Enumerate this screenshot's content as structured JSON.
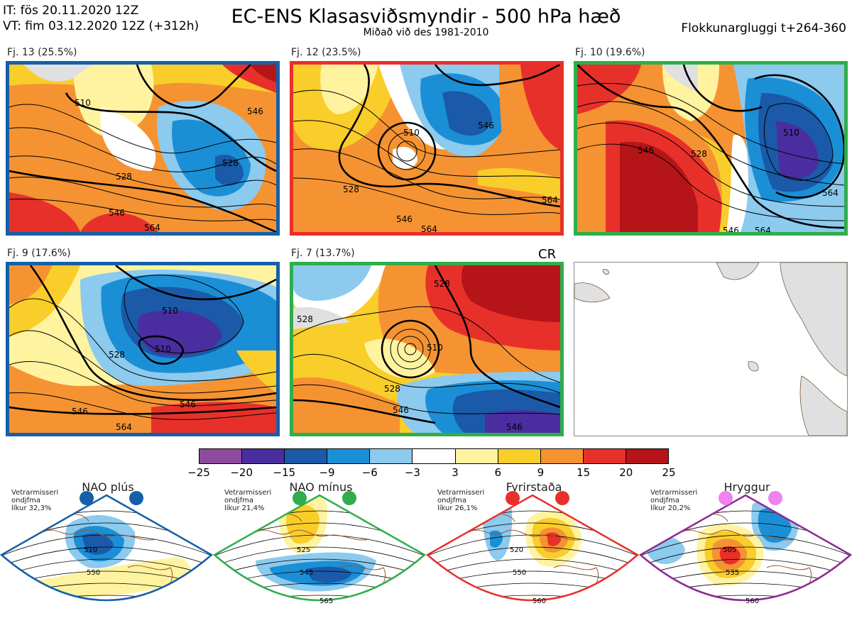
{
  "header": {
    "it_line": "IT: fös 20.11.2020 12Z",
    "vt_line": "VT: fim 03.12.2020 12Z  (+312h)",
    "title": "EC-ENS Klasasviðsmyndir - 500 hPa hæð",
    "subtitle": "Miðað við des 1981-2010",
    "window": "Flokkunargluggi t+264-360"
  },
  "clusters": [
    {
      "label": "Fj. 13 (25.5%)",
      "border": "#1560a8",
      "contours": [
        "510",
        "528",
        "528",
        "546",
        "546",
        "564"
      ]
    },
    {
      "label": "Fj. 12 (23.5%)",
      "border": "#e8302a",
      "contours": [
        "510",
        "528",
        "546",
        "546",
        "564",
        "564"
      ]
    },
    {
      "label": "Fj. 10 (19.6%)",
      "border": "#2fae4b",
      "contours": [
        "510",
        "528",
        "546",
        "546",
        "564",
        "564"
      ]
    },
    {
      "label": "Fj. 9 (17.6%)",
      "border": "#1560a8",
      "contours": [
        "510",
        "510",
        "528",
        "546",
        "546",
        "564"
      ]
    },
    {
      "label": "Fj. 7 (13.7%)",
      "border": "#2fae4b",
      "contours": [
        "510",
        "528",
        "546",
        "546",
        "528",
        "528"
      ]
    }
  ],
  "cr_label": "CR",
  "colorbar": {
    "ticks": [
      "−25",
      "−20",
      "−15",
      "−9",
      "−6",
      "−3",
      "3",
      "6",
      "9",
      "15",
      "20",
      "25"
    ],
    "colors": [
      "#8e4b9d",
      "#4a2ea0",
      "#1a5aa8",
      "#1b8fd6",
      "#8ccaee",
      "#ffffff",
      "#fff3a0",
      "#f9cd2a",
      "#f59332",
      "#e8302a",
      "#b51518"
    ]
  },
  "regimes": [
    {
      "title": "NAO plús",
      "note": [
        "Vetrarmisseri",
        "ondjfma",
        "líkur 32,3%"
      ],
      "color": "#1560a8",
      "dot": "#1560a8",
      "contours": [
        "510",
        "550"
      ]
    },
    {
      "title": "NAO mínus",
      "note": [
        "Vetrarmisseri",
        "ondjfma",
        "líkur 21,4%"
      ],
      "color": "#2fae4b",
      "dot": "#2fae4b",
      "contours": [
        "525",
        "545",
        "565"
      ]
    },
    {
      "title": "Fyrirstaða",
      "note": [
        "Vetrarmisseri",
        "ondjfma",
        "líkur 26,1%"
      ],
      "color": "#e8302a",
      "dot": "#e8302a",
      "contours": [
        "520",
        "550",
        "560"
      ]
    },
    {
      "title": "Hryggur",
      "note": [
        "Vetrarmisseri",
        "ondjfma",
        "líkur 20,2%"
      ],
      "color": "#8e2a94",
      "dot": "#ee82ee",
      "contours": [
        "505",
        "535",
        "560"
      ]
    }
  ]
}
